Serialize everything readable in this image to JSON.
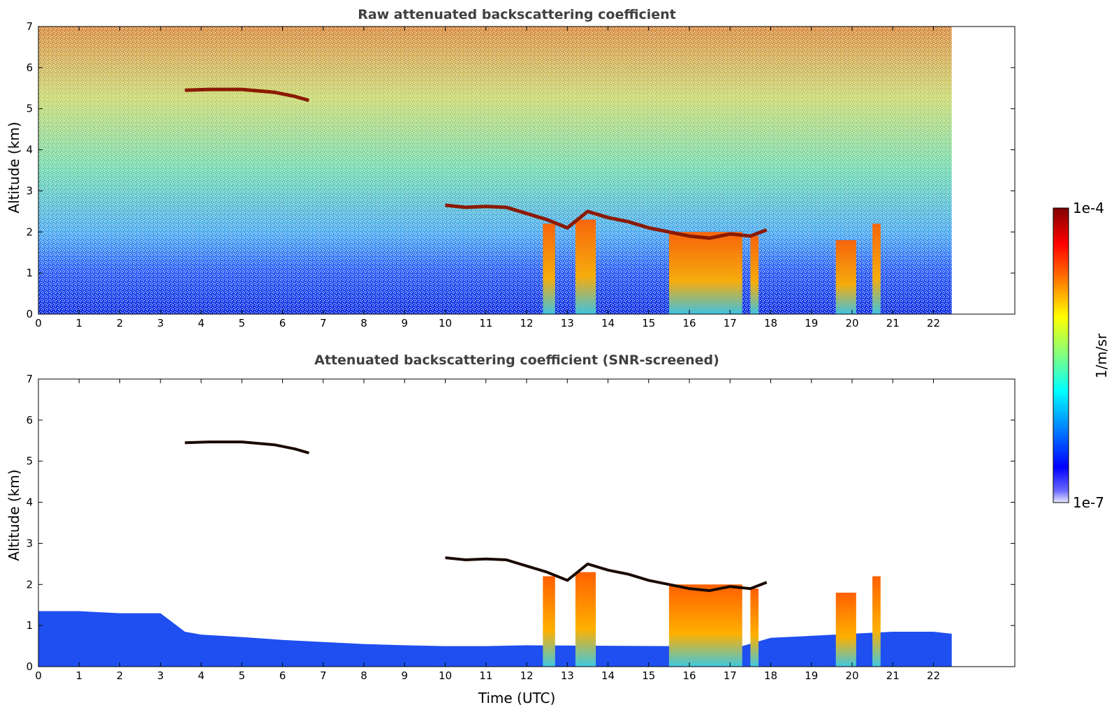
{
  "chart_data": [
    {
      "type": "heatmap",
      "title": "Raw attenuated backscattering coefficient",
      "xlabel": "",
      "ylabel": "Altitude (km)",
      "xlim": [
        0,
        24
      ],
      "ylim": [
        0,
        7
      ],
      "xticks": [
        "0",
        "1",
        "2",
        "3",
        "4",
        "5",
        "6",
        "7",
        "8",
        "9",
        "10",
        "11",
        "12",
        "13",
        "14",
        "15",
        "16",
        "17",
        "18",
        "19",
        "20",
        "21",
        "22"
      ],
      "yticks": [
        "0",
        "1",
        "2",
        "3",
        "4",
        "5",
        "6",
        "7"
      ],
      "data_end_time": 22.45,
      "features": [
        {
          "kind": "cloud_layer",
          "x": [
            3.6,
            4.2,
            5.0,
            5.8,
            6.3,
            6.65
          ],
          "y": [
            5.45,
            5.47,
            5.47,
            5.4,
            5.3,
            5.2
          ]
        },
        {
          "kind": "cloud_layer",
          "x": [
            10.0,
            10.5,
            11.0,
            11.5,
            12.0,
            12.5,
            13.0,
            13.5,
            14.0,
            14.5,
            15.0,
            15.5,
            16.0,
            16.5,
            17.0,
            17.5,
            17.9
          ],
          "y": [
            2.65,
            2.6,
            2.62,
            2.6,
            2.45,
            2.3,
            2.1,
            2.5,
            2.35,
            2.25,
            2.1,
            2.0,
            1.9,
            1.85,
            1.95,
            1.9,
            2.05
          ]
        },
        {
          "kind": "precip_shaft",
          "x": [
            12.4,
            12.7
          ],
          "y": [
            0,
            2.2
          ]
        },
        {
          "kind": "precip_shaft",
          "x": [
            13.2,
            13.7
          ],
          "y": [
            0,
            2.3
          ]
        },
        {
          "kind": "precip_shaft",
          "x": [
            15.5,
            17.3
          ],
          "y": [
            0,
            2.0
          ]
        },
        {
          "kind": "precip_shaft",
          "x": [
            17.5,
            17.7
          ],
          "y": [
            0,
            1.9
          ]
        },
        {
          "kind": "precip_shaft",
          "x": [
            19.6,
            20.1
          ],
          "y": [
            0,
            1.8
          ]
        },
        {
          "kind": "precip_shaft",
          "x": [
            20.5,
            20.7
          ],
          "y": [
            0,
            2.2
          ]
        }
      ]
    },
    {
      "type": "heatmap",
      "title": "Attenuated backscattering coefficient (SNR-screened)",
      "xlabel": "Time (UTC)",
      "ylabel": "Altitude (km)",
      "xlim": [
        0,
        24
      ],
      "ylim": [
        0,
        7
      ],
      "xticks": [
        "0",
        "1",
        "2",
        "3",
        "4",
        "5",
        "6",
        "7",
        "8",
        "9",
        "10",
        "11",
        "12",
        "13",
        "14",
        "15",
        "16",
        "17",
        "18",
        "19",
        "20",
        "21",
        "22"
      ],
      "yticks": [
        "0",
        "1",
        "2",
        "3",
        "4",
        "5",
        "6",
        "7"
      ],
      "data_end_time": 22.45,
      "boundary_layer_top": {
        "x": [
          0,
          1,
          2,
          3,
          3.6,
          4,
          5,
          6,
          7,
          8,
          9,
          10,
          11,
          12,
          15.5,
          17.3,
          18,
          19,
          20,
          21,
          22,
          22.45
        ],
        "y": [
          1.35,
          1.35,
          1.3,
          1.3,
          0.85,
          0.78,
          0.72,
          0.65,
          0.6,
          0.55,
          0.52,
          0.5,
          0.5,
          0.52,
          0.5,
          0.5,
          0.7,
          0.75,
          0.8,
          0.85,
          0.85,
          0.8
        ]
      }
    }
  ],
  "colorbar": {
    "top_label": "1e-4",
    "bottom_label": "1e-7",
    "unit": "1/m/sr",
    "colors": [
      "#7f0000",
      "#ff0000",
      "#ff8000",
      "#ffff00",
      "#80ff80",
      "#00ffff",
      "#0080ff",
      "#0000ff",
      "#e8e8ff"
    ]
  }
}
